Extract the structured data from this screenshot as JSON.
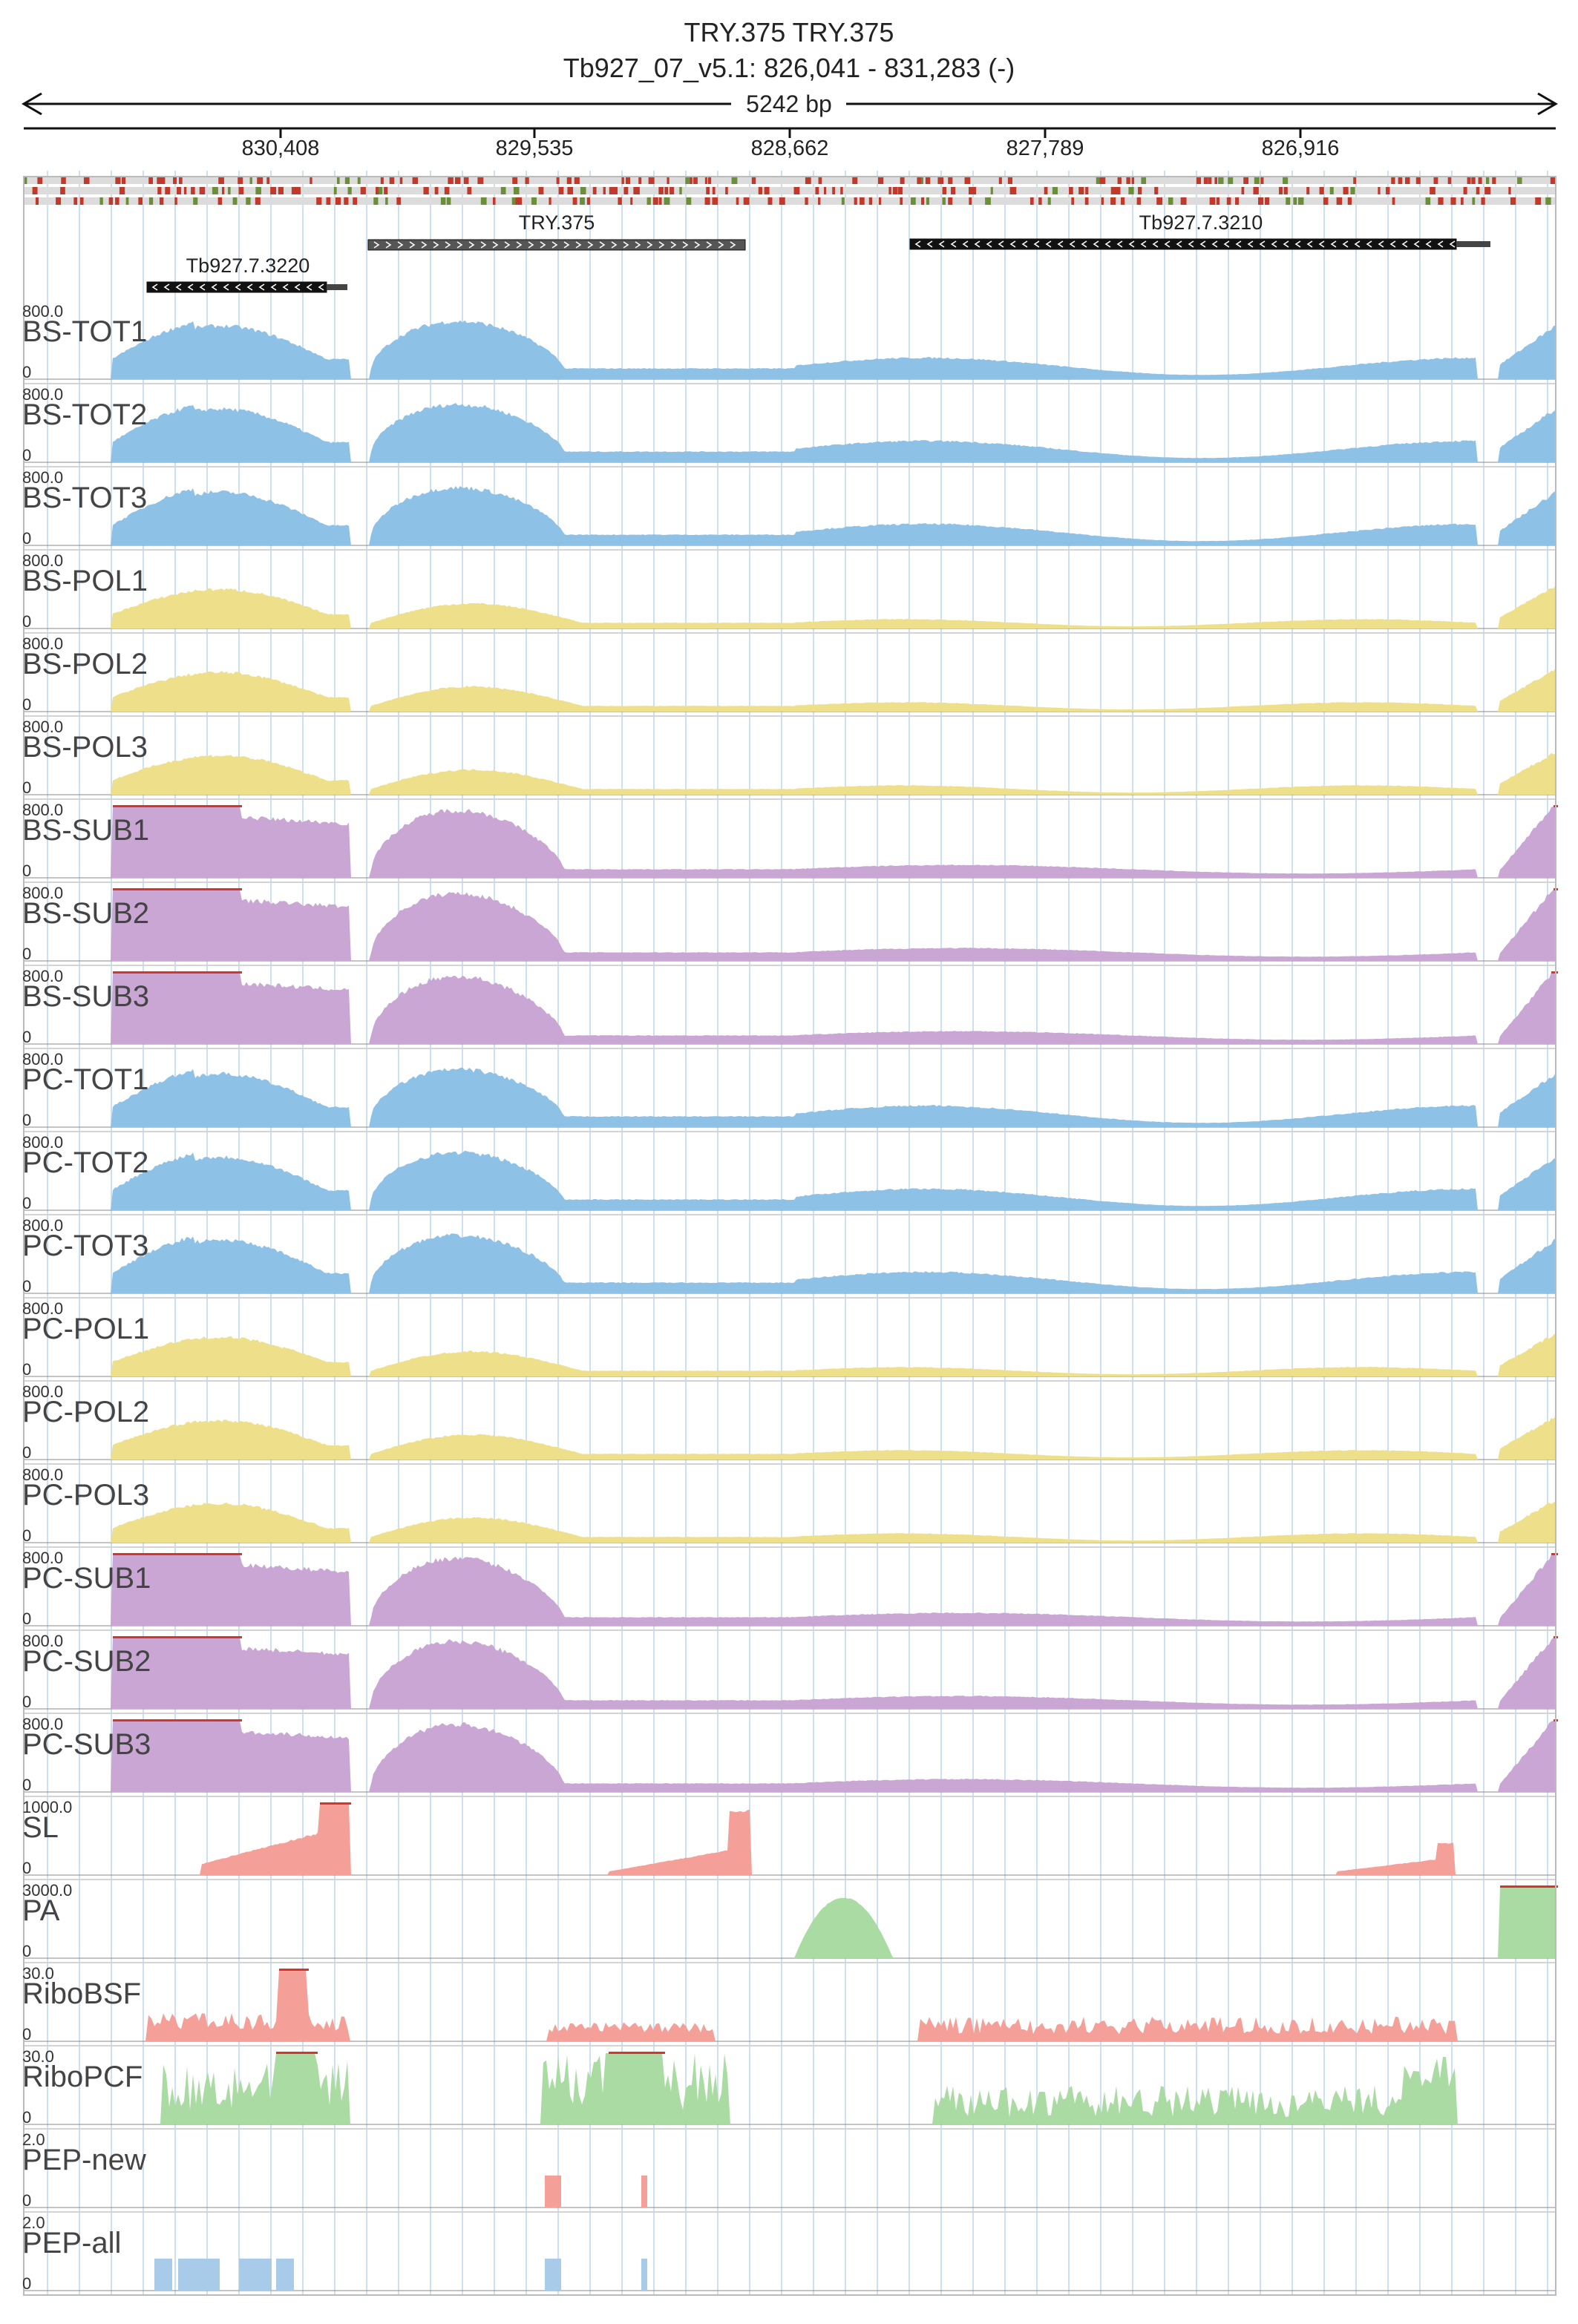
{
  "header": {
    "title": "TRY.375  TRY.375",
    "location": "Tb927_07_v5.1: 826,041 - 831,283 (-)",
    "span": "5242 bp"
  },
  "ruler": {
    "ticks": [
      "830,408",
      "829,535",
      "828,662",
      "827,789",
      "826,916"
    ]
  },
  "genes": [
    {
      "name": "TRY.375",
      "strand": "+",
      "style": "outline"
    },
    {
      "name": "Tb927.7.3210",
      "strand": "-",
      "style": "solid"
    },
    {
      "name": "Tb927.7.3220",
      "strand": "-",
      "style": "solid"
    }
  ],
  "tracks": [
    {
      "name": "BS-TOT1",
      "max": "800.0",
      "zero": "0",
      "color": "#8ec1e6"
    },
    {
      "name": "BS-TOT2",
      "max": "800.0",
      "zero": "0",
      "color": "#8ec1e6"
    },
    {
      "name": "BS-TOT3",
      "max": "800.0",
      "zero": "0",
      "color": "#8ec1e6"
    },
    {
      "name": "BS-POL1",
      "max": "800.0",
      "zero": "0",
      "color": "#eee08a"
    },
    {
      "name": "BS-POL2",
      "max": "800.0",
      "zero": "0",
      "color": "#eee08a"
    },
    {
      "name": "BS-POL3",
      "max": "800.0",
      "zero": "0",
      "color": "#eee08a"
    },
    {
      "name": "BS-SUB1",
      "max": "800.0",
      "zero": "0",
      "color": "#c9a6d4"
    },
    {
      "name": "BS-SUB2",
      "max": "800.0",
      "zero": "0",
      "color": "#c9a6d4"
    },
    {
      "name": "BS-SUB3",
      "max": "800.0",
      "zero": "0",
      "color": "#c9a6d4"
    },
    {
      "name": "PC-TOT1",
      "max": "800.0",
      "zero": "0",
      "color": "#8ec1e6"
    },
    {
      "name": "PC-TOT2",
      "max": "800.0",
      "zero": "0",
      "color": "#8ec1e6"
    },
    {
      "name": "PC-TOT3",
      "max": "800.0",
      "zero": "0",
      "color": "#8ec1e6"
    },
    {
      "name": "PC-POL1",
      "max": "800.0",
      "zero": "0",
      "color": "#eee08a"
    },
    {
      "name": "PC-POL2",
      "max": "800.0",
      "zero": "0",
      "color": "#eee08a"
    },
    {
      "name": "PC-POL3",
      "max": "800.0",
      "zero": "0",
      "color": "#eee08a"
    },
    {
      "name": "PC-SUB1",
      "max": "800.0",
      "zero": "0",
      "color": "#c9a6d4"
    },
    {
      "name": "PC-SUB2",
      "max": "800.0",
      "zero": "0",
      "color": "#c9a6d4"
    },
    {
      "name": "PC-SUB3",
      "max": "800.0",
      "zero": "0",
      "color": "#c9a6d4"
    },
    {
      "name": "SL",
      "max": "1000.0",
      "zero": "0",
      "color": "#f4a098"
    },
    {
      "name": "PA",
      "max": "3000.0",
      "zero": "0",
      "color": "#a9dba3"
    },
    {
      "name": "RiboBSF",
      "max": "30.0",
      "zero": "0",
      "color": "#f4a098"
    },
    {
      "name": "RiboPCF",
      "max": "30.0",
      "zero": "0",
      "color": "#a9dba3"
    },
    {
      "name": "PEP-new",
      "max": "2.0",
      "zero": "0",
      "color": "#f4a098"
    },
    {
      "name": "PEP-all",
      "max": "2.0",
      "zero": "0",
      "color": "#a7cbe9"
    }
  ],
  "colors": {
    "overflow": "#d9342b",
    "gridline": "#cde0f2",
    "separator": "#d4d4d4",
    "gene_fill": "#111111"
  }
}
